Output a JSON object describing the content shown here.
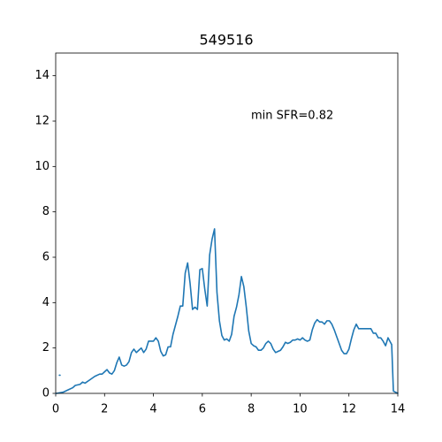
{
  "chart_data": {
    "type": "line",
    "title": "549516",
    "annotation": "min SFR=0.82",
    "xlim": [
      0,
      14
    ],
    "ylim": [
      0,
      15
    ],
    "xticks": [
      0,
      2,
      4,
      6,
      8,
      10,
      12,
      14
    ],
    "yticks": [
      0,
      2,
      4,
      6,
      8,
      10,
      12,
      14
    ],
    "x": [
      0.15,
      null,
      0.0,
      0.3,
      0.5,
      0.7,
      0.8,
      1.0,
      1.1,
      1.2,
      1.4,
      1.6,
      1.8,
      1.9,
      2.0,
      2.1,
      2.2,
      2.3,
      2.4,
      2.5,
      2.6,
      2.7,
      2.8,
      2.9,
      3.0,
      3.1,
      3.2,
      3.3,
      3.4,
      3.5,
      3.6,
      3.7,
      3.8,
      3.9,
      4.0,
      4.1,
      4.2,
      4.3,
      4.4,
      4.5,
      4.6,
      4.7,
      4.8,
      4.9,
      5.0,
      5.1,
      5.2,
      5.3,
      5.4,
      5.5,
      5.6,
      5.7,
      5.8,
      5.9,
      6.0,
      6.1,
      6.2,
      6.3,
      6.4,
      6.5,
      6.6,
      6.7,
      6.8,
      6.9,
      7.0,
      7.1,
      7.2,
      7.3,
      7.4,
      7.5,
      7.6,
      7.7,
      7.8,
      7.9,
      8.0,
      8.1,
      8.2,
      8.3,
      8.4,
      8.5,
      8.6,
      8.7,
      8.8,
      8.9,
      9.0,
      9.1,
      9.2,
      9.3,
      9.4,
      9.5,
      9.6,
      9.7,
      9.8,
      9.9,
      10.0,
      10.1,
      10.2,
      10.3,
      10.4,
      10.5,
      10.6,
      10.7,
      10.8,
      10.9,
      11.0,
      11.1,
      11.2,
      11.3,
      11.4,
      11.5,
      11.6,
      11.7,
      11.8,
      11.9,
      12.0,
      12.1,
      12.2,
      12.3,
      12.4,
      12.6,
      12.8,
      12.9,
      13.0,
      13.1,
      13.2,
      13.3,
      13.4,
      13.5,
      13.6,
      13.7,
      13.75,
      13.82,
      14.0
    ],
    "series": [
      {
        "color": "#1f77b4",
        "values": [
          0.8,
          null,
          0.0,
          0.05,
          0.15,
          0.25,
          0.35,
          0.4,
          0.5,
          0.45,
          0.6,
          0.75,
          0.85,
          0.85,
          0.95,
          1.05,
          0.9,
          0.85,
          1.0,
          1.35,
          1.6,
          1.25,
          1.2,
          1.25,
          1.4,
          1.8,
          1.95,
          1.8,
          1.9,
          2.0,
          1.8,
          1.95,
          2.3,
          2.3,
          2.3,
          2.45,
          2.3,
          1.85,
          1.65,
          1.7,
          2.05,
          2.05,
          2.6,
          3.0,
          3.4,
          3.85,
          3.85,
          5.3,
          5.75,
          4.85,
          3.7,
          3.8,
          3.7,
          5.45,
          5.5,
          4.6,
          3.85,
          6.1,
          6.8,
          7.25,
          4.45,
          3.2,
          2.55,
          2.35,
          2.4,
          2.3,
          2.6,
          3.4,
          3.8,
          4.35,
          5.15,
          4.7,
          3.8,
          2.75,
          2.2,
          2.1,
          2.05,
          1.9,
          1.9,
          2.0,
          2.2,
          2.3,
          2.2,
          1.95,
          1.8,
          1.85,
          1.9,
          2.05,
          2.25,
          2.2,
          2.25,
          2.35,
          2.35,
          2.4,
          2.35,
          2.45,
          2.35,
          2.3,
          2.35,
          2.8,
          3.1,
          3.25,
          3.15,
          3.15,
          3.05,
          3.2,
          3.2,
          3.05,
          2.8,
          2.5,
          2.2,
          1.9,
          1.75,
          1.75,
          1.95,
          2.4,
          2.8,
          3.05,
          2.85,
          2.85,
          2.85,
          2.85,
          2.65,
          2.65,
          2.45,
          2.45,
          2.3,
          2.1,
          2.45,
          2.25,
          2.15,
          0.1,
          0.0
        ]
      }
    ]
  }
}
